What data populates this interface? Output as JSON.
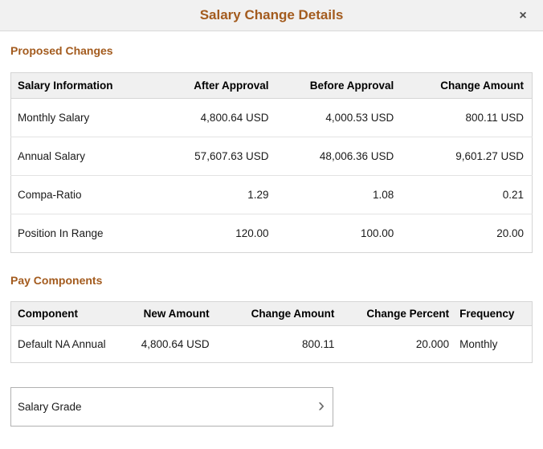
{
  "modal": {
    "title": "Salary Change Details"
  },
  "icons": {
    "close": "×",
    "chevron_right": "›"
  },
  "proposed_changes": {
    "heading": "Proposed Changes",
    "columns": [
      "Salary Information",
      "After Approval",
      "Before Approval",
      "Change Amount"
    ],
    "rows": [
      [
        "Monthly Salary",
        "4,800.64 USD",
        "4,000.53 USD",
        "800.11 USD"
      ],
      [
        "Annual Salary",
        "57,607.63 USD",
        "48,006.36 USD",
        "9,601.27 USD"
      ],
      [
        "Compa-Ratio",
        "1.29",
        "1.08",
        "0.21"
      ],
      [
        "Position In Range",
        "120.00",
        "100.00",
        "20.00"
      ]
    ]
  },
  "pay_components": {
    "heading": "Pay Components",
    "columns": [
      "Component",
      "New Amount",
      "Change Amount",
      "Change Percent",
      "Frequency"
    ],
    "rows": [
      [
        "Default NA Annual",
        "4,800.64 USD",
        "800.11",
        "20.000",
        "Monthly"
      ]
    ]
  },
  "salary_grade": {
    "label": "Salary Grade"
  },
  "colors": {
    "accent_brown": "#a35b1e",
    "header_bar_bg": "#f1f1f1",
    "table_header_bg": "#f0f0f0",
    "table_border": "#d5d5d5",
    "row_divider": "#e3e3e3",
    "salary_grade_border": "#b1b1b1",
    "close_icon": "#4d4d4d"
  }
}
